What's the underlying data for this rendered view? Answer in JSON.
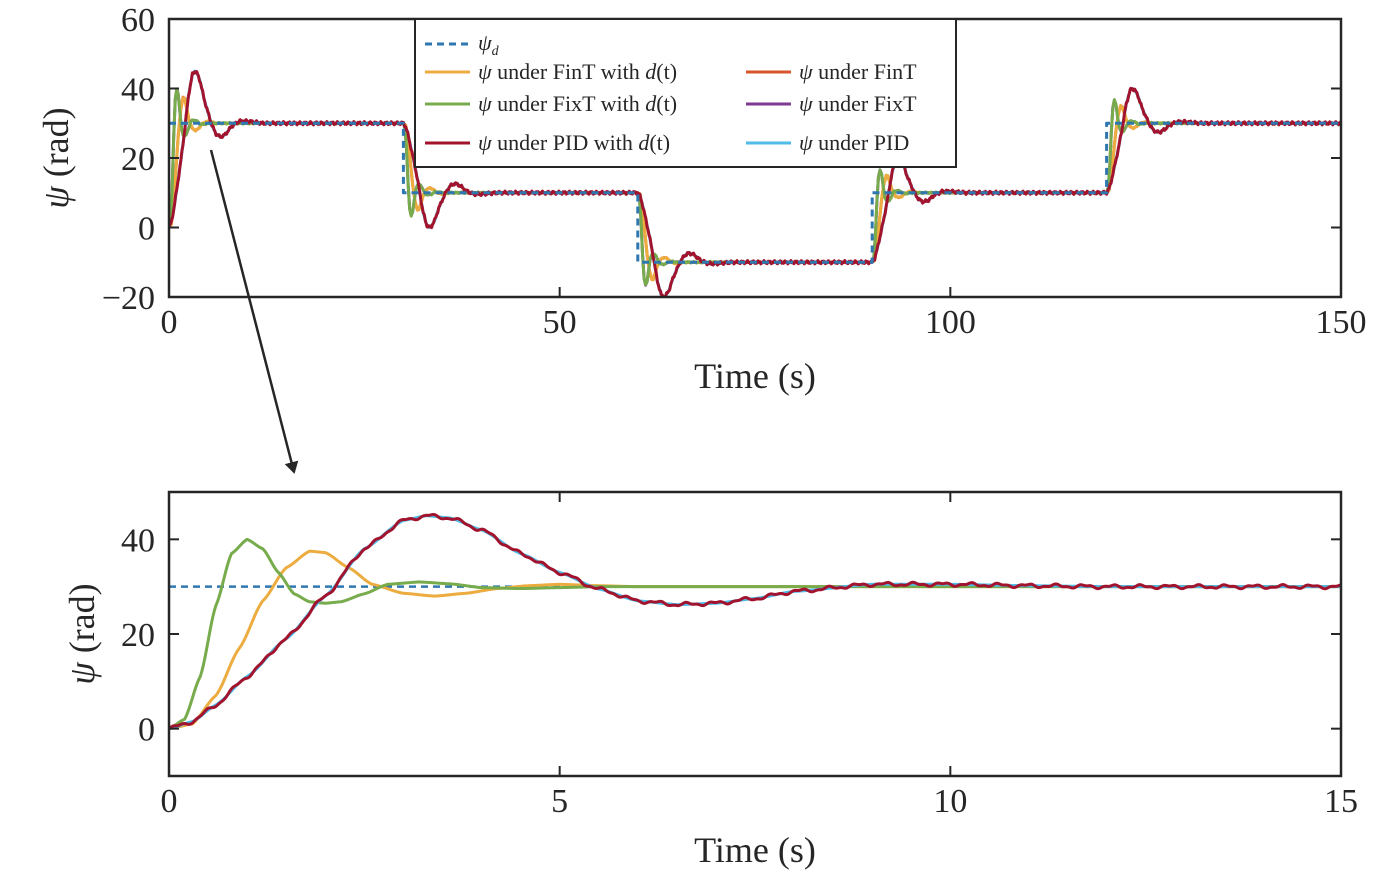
{
  "chart_data": [
    {
      "type": "line",
      "xlabel": "Time (s)",
      "ylabel_symbol": "ψ",
      "ylabel_unit": " (rad)",
      "xlim": [
        0,
        150
      ],
      "ylim": [
        -20,
        60
      ],
      "xticks": [
        0,
        50,
        100,
        150
      ],
      "xtick_labels": [
        "0",
        "50",
        "100",
        "150"
      ],
      "yticks": [
        -20,
        0,
        20,
        40,
        60
      ],
      "ytick_labels": [
        "−20",
        "0",
        "20",
        "40",
        "60"
      ],
      "grid": false,
      "legend_position": "top-center",
      "reference": {
        "name": "ψd",
        "color": "#2e77b1",
        "style": "dashed",
        "x": [
          0,
          30,
          30,
          60,
          60,
          90,
          90,
          120,
          120,
          150
        ],
        "y": [
          30,
          30,
          10,
          10,
          -10,
          -10,
          10,
          10,
          30,
          30
        ]
      },
      "setpoints": [
        {
          "t0": 0,
          "y0": 0,
          "y1": 30
        },
        {
          "t0": 30,
          "y0": 30,
          "y1": 10
        },
        {
          "t0": 60,
          "y0": 10,
          "y1": -10
        },
        {
          "t0": 90,
          "y0": -10,
          "y1": 10
        },
        {
          "t0": 120,
          "y0": 10,
          "y1": 30
        }
      ],
      "series": [
        {
          "name": "ψ under FinT with d(t)",
          "color": "#ecac3f",
          "model": "fint",
          "noise": 0.15
        },
        {
          "name": "ψ under FinT",
          "color": "#d9542b",
          "model": "fint",
          "noise": 0
        },
        {
          "name": "ψ under FixT with d(t)",
          "color": "#77ab4c",
          "model": "fixt",
          "noise": 0.15
        },
        {
          "name": "ψ under FixT",
          "color": "#7e3a93",
          "model": "fixt",
          "noise": 0
        },
        {
          "name": "ψ under PID with d(t)",
          "color": "#a2142e",
          "model": "pid",
          "noise": 0.3
        },
        {
          "name": "ψ under PID",
          "color": "#4fbbe8",
          "model": "pid",
          "noise": 0
        }
      ],
      "legend": {
        "ref": {
          "sym": "ψ",
          "sub": "d"
        },
        "rows": [
          {
            "left": {
              "sym": "ψ",
              "text": " under FinT with ",
              "d": "d",
              "tail": "(t)"
            },
            "right": {
              "sym": "ψ",
              "text": " under FinT"
            }
          },
          {
            "left": {
              "sym": "ψ",
              "text": " under FixT with ",
              "d": "d",
              "tail": "(t)"
            },
            "right": {
              "sym": "ψ",
              "text": " under FixT"
            }
          },
          {
            "left": {
              "sym": "ψ",
              "text": " under PID with ",
              "d": "d",
              "tail": "(t)"
            },
            "right": {
              "sym": "ψ",
              "text": " under PID"
            }
          }
        ]
      }
    },
    {
      "type": "line",
      "xlabel": "Time (s)",
      "ylabel_symbol": "ψ",
      "ylabel_unit": " (rad)",
      "xlim": [
        0,
        15
      ],
      "ylim": [
        -10,
        50
      ],
      "xticks": [
        0,
        5,
        10,
        15
      ],
      "xtick_labels": [
        "0",
        "5",
        "10",
        "15"
      ],
      "yticks": [
        0,
        20,
        40
      ],
      "ytick_labels": [
        "0",
        "20",
        "40"
      ],
      "grid": false,
      "reference_value": 30,
      "series": [
        {
          "name": "ψ under FinT with d(t)",
          "color": "#ecac3f",
          "x": [
            0,
            0.3,
            0.6,
            0.9,
            1.2,
            1.5,
            1.8,
            2.0,
            2.3,
            2.6,
            3.0,
            3.4,
            3.8,
            4.2,
            4.6,
            5.0,
            5.5,
            6.0,
            7,
            8,
            9,
            10,
            12,
            15
          ],
          "y": [
            0,
            1,
            7,
            17,
            27,
            34,
            37.5,
            37.2,
            34,
            30.5,
            28.6,
            28,
            28.6,
            29.6,
            30.2,
            30.5,
            30.2,
            30,
            30,
            30,
            30,
            30,
            30,
            30
          ]
        },
        {
          "name": "ψ under FixT with d(t)",
          "color": "#77ab4c",
          "x": [
            0,
            0.2,
            0.4,
            0.6,
            0.8,
            1.0,
            1.2,
            1.4,
            1.6,
            1.8,
            2.0,
            2.2,
            2.5,
            2.8,
            3.2,
            3.6,
            4.0,
            4.5,
            5.0,
            5.5,
            6,
            8,
            10,
            15
          ],
          "y": [
            0,
            2,
            11,
            26,
            37,
            40,
            38,
            33,
            28.5,
            26.8,
            26.5,
            26.8,
            28.5,
            30.5,
            31,
            30.6,
            29.8,
            29.6,
            29.8,
            30,
            30,
            30,
            30,
            30
          ]
        },
        {
          "name": "ψ under PID",
          "color": "#4fbbe8",
          "x": [
            0,
            0.3,
            0.6,
            1.0,
            1.5,
            2.0,
            2.5,
            3.0,
            3.3,
            3.6,
            4.0,
            4.5,
            5.0,
            5.5,
            6.0,
            6.5,
            7.0,
            7.5,
            8.0,
            9.0,
            10,
            11,
            12,
            13,
            14,
            15
          ],
          "y": [
            0,
            1.5,
            5,
            11,
            19,
            28,
            38,
            44,
            45,
            44.5,
            42,
            37,
            33,
            29.5,
            27,
            26.2,
            26.5,
            27.5,
            29,
            30.5,
            30.5,
            30.2,
            30,
            30,
            30,
            30
          ]
        },
        {
          "name": "ψ under PID with d(t)",
          "color": "#a2142e",
          "x": [
            0,
            0.3,
            0.6,
            1.0,
            1.5,
            2.0,
            2.5,
            3.0,
            3.3,
            3.6,
            4.0,
            4.5,
            5.0,
            5.5,
            6.0,
            6.5,
            7.0,
            7.5,
            8.0,
            9.0,
            10,
            11,
            12,
            13,
            14,
            15
          ],
          "y": [
            0,
            1.5,
            5,
            11,
            19,
            28,
            38,
            44,
            45,
            44.5,
            42,
            37,
            33,
            29.5,
            27,
            26.2,
            26.5,
            27.5,
            29,
            30.5,
            30.5,
            30.2,
            30,
            30,
            30,
            30
          ],
          "noise": 0.3
        }
      ]
    }
  ]
}
